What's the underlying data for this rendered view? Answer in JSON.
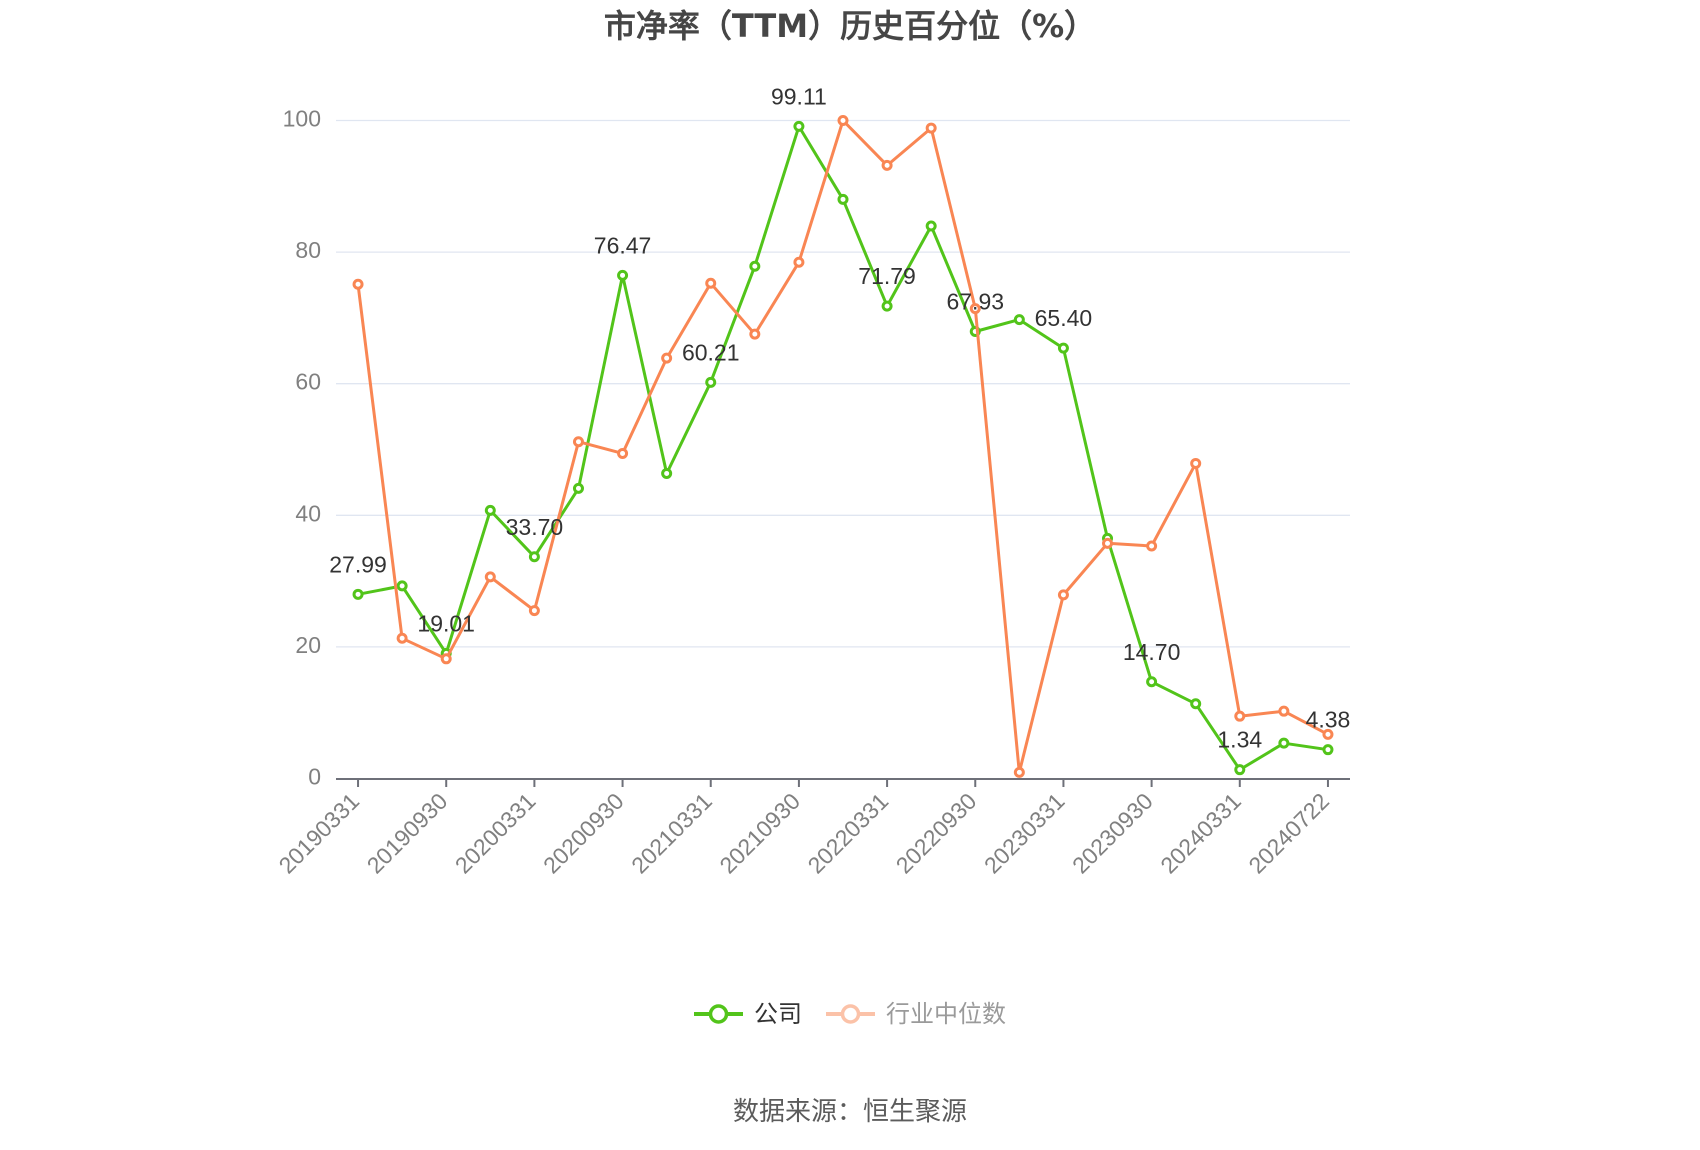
{
  "title": "市净率（TTM）历史百分位（%）",
  "legend": {
    "items": [
      {
        "label": "公司",
        "color": "#52C41A",
        "icon": "line-circle-icon"
      },
      {
        "label": "行业中位数",
        "color": "#F98653",
        "icon": "line-circle-icon"
      }
    ]
  },
  "footer": {
    "source": "数据来源：恒生聚源"
  },
  "colors": {
    "grid": "#E0E6F1",
    "axis": "#6E7079",
    "axis_label": "#808080",
    "data_label": "#333333"
  },
  "chart_data": {
    "type": "line",
    "title": "市净率（TTM）历史百分位（%）",
    "xlabel": "",
    "ylabel": "",
    "ylim": [
      0,
      100
    ],
    "yticks": [
      0,
      20,
      40,
      60,
      80,
      100
    ],
    "grid": true,
    "legend_position": "bottom",
    "categories": [
      "20190331",
      "20190630",
      "20190930",
      "20191231",
      "20200331",
      "20200630",
      "20200930",
      "20201231",
      "20210331",
      "20210630",
      "20210930",
      "20211231",
      "20220331",
      "20220630",
      "20220930",
      "20221231",
      "20230331",
      "20230630",
      "20230930",
      "20231231",
      "20240331",
      "20240630",
      "20240722"
    ],
    "x_tick_labels": [
      "20190331",
      "20190930",
      "20200331",
      "20200930",
      "20210331",
      "20210930",
      "20220331",
      "20220930",
      "20230331",
      "20230930",
      "20240331",
      "20240722"
    ],
    "series": [
      {
        "name": "公司",
        "color": "#52C41A",
        "values": [
          27.99,
          29.27,
          19.01,
          40.75,
          33.7,
          44.09,
          76.47,
          46.36,
          60.21,
          77.85,
          99.11,
          88.02,
          71.79,
          83.97,
          67.93,
          69.74,
          65.4,
          36.5,
          14.7,
          11.36,
          1.34,
          5.37,
          4.38
        ],
        "data_labels": [
          {
            "index": 0,
            "text": "27.99"
          },
          {
            "index": 2,
            "text": "19.01"
          },
          {
            "index": 4,
            "text": "33.70"
          },
          {
            "index": 6,
            "text": "76.47"
          },
          {
            "index": 8,
            "text": "60.21"
          },
          {
            "index": 10,
            "text": "99.11"
          },
          {
            "index": 12,
            "text": "71.79"
          },
          {
            "index": 14,
            "text": "67.93"
          },
          {
            "index": 16,
            "text": "65.40"
          },
          {
            "index": 18,
            "text": "14.70"
          },
          {
            "index": 20,
            "text": "1.34"
          },
          {
            "index": 22,
            "text": "4.38"
          }
        ]
      },
      {
        "name": "行业中位数",
        "color": "#F98653",
        "values": [
          75.12,
          21.31,
          18.19,
          30.64,
          25.52,
          51.18,
          49.4,
          63.88,
          75.27,
          67.53,
          78.46,
          100.0,
          93.18,
          98.85,
          71.41,
          0.93,
          27.9,
          35.74,
          35.34,
          47.88,
          9.47,
          10.23,
          6.7
        ],
        "data_labels": []
      }
    ]
  }
}
